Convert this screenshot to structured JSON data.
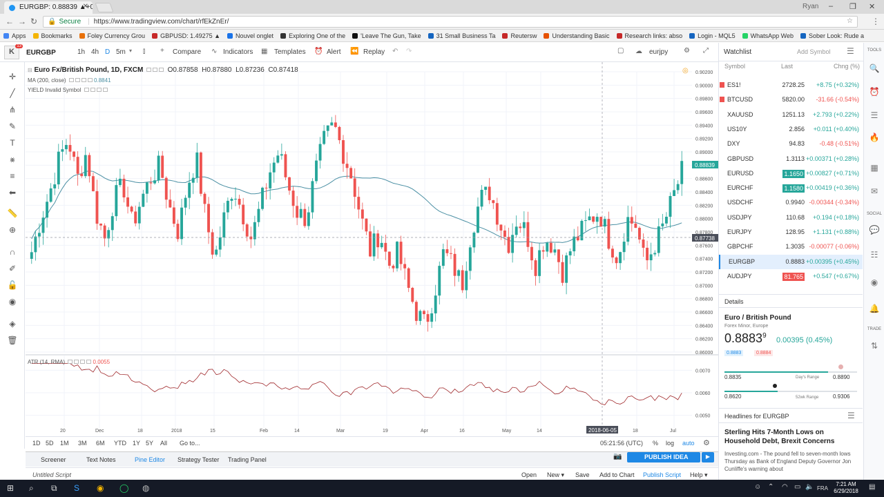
{
  "browser": {
    "tab_title": "EURGBP: 0.88839 ▲+0.45",
    "user": "Ryan",
    "secure_label": "Secure",
    "url": "https://www.tradingview.com/chart/rfEkZnEr/",
    "bookmarks": [
      "Apps",
      "Bookmarks",
      "Foley Currency Grou",
      "GBPUSD: 1.49275 ▲",
      "Nouvel onglet",
      "Exploring One of the",
      "'Leave The Gun, Take",
      "31 Small Business Ta",
      "Reutersw",
      "Understanding Basic",
      "Research links: abso",
      "Login - MQL5",
      "WhatsApp Web",
      "Sober Look: Rude a"
    ],
    "bookmark_colors": [
      "#4285f4",
      "#f4b400",
      "#e8710a",
      "#c62828",
      "#1a73e8",
      "#333333",
      "#111111",
      "#1565c0",
      "#c62828",
      "#e65100",
      "#c62828",
      "#1565c0",
      "#25d366",
      "#1565c0"
    ]
  },
  "toolbar": {
    "symbol": "EURGBP",
    "intervals": [
      "1h",
      "4h",
      "D",
      "5m"
    ],
    "active_interval": "D",
    "compare": "Compare",
    "indicators": "Indicators",
    "templates": "Templates",
    "alert": "Alert",
    "replay": "Replay",
    "layout_name": "eurjpy",
    "logo_badge": "13"
  },
  "legend": {
    "title": "Euro Fx/British Pound, 1D, FXCM",
    "open": "O0.87858",
    "high": "H0.87880",
    "low": "L0.87236",
    "close": "C0.87418",
    "ma_label": "MA (200, close)",
    "ma_value": "0.8841",
    "yield_label": "YIELD Invalid Symbol",
    "atr_label": "ATR (14, RMA)",
    "atr_value": "0.0055"
  },
  "chart_data": {
    "type": "candlestick",
    "symbol": "EURGBP",
    "price_axis": [
      "0.90200",
      "0.90000",
      "0.89800",
      "0.89600",
      "0.89400",
      "0.89200",
      "0.89000",
      "0.88800",
      "0.88600",
      "0.88400",
      "0.88200",
      "0.88000",
      "0.87800",
      "0.87600",
      "0.87400",
      "0.87200",
      "0.87000",
      "0.86800",
      "0.86600",
      "0.86400",
      "0.86200",
      "0.86000"
    ],
    "ylim": [
      0.86,
      0.902
    ],
    "last_price_label": "0.88839",
    "crosshair_price_label": "0.87738",
    "time_axis": [
      "20",
      "Dec",
      "18",
      "2018",
      "15",
      "Feb",
      "14",
      "Mar",
      "19",
      "Apr",
      "16",
      "May",
      "14",
      "18",
      "Jul"
    ],
    "crosshair_date": "2018-06-05",
    "atr_axis": [
      "0.0070",
      "0.0060",
      "0.0050"
    ],
    "atr_ylim": [
      0.0045,
      0.0075
    ],
    "ma_period": 200,
    "path_points": [
      0.875,
      0.88,
      0.884,
      0.889,
      0.892,
      0.886,
      0.89,
      0.881,
      0.877,
      0.883,
      0.885,
      0.879,
      0.883,
      0.886,
      0.888,
      0.882,
      0.878,
      0.885,
      0.889,
      0.88,
      0.874,
      0.88,
      0.885,
      0.881,
      0.877,
      0.882,
      0.887,
      0.89,
      0.885,
      0.881,
      0.88,
      0.887,
      0.892,
      0.894,
      0.89,
      0.886,
      0.88,
      0.875,
      0.878,
      0.873,
      0.875,
      0.87,
      0.866,
      0.864,
      0.869,
      0.875,
      0.873,
      0.87,
      0.878,
      0.883,
      0.884,
      0.88,
      0.876,
      0.88,
      0.878,
      0.873,
      0.877,
      0.876,
      0.872,
      0.876,
      0.878,
      0.88,
      0.881,
      0.877,
      0.874,
      0.88,
      0.879,
      0.873,
      0.876,
      0.879,
      0.883,
      0.887
    ]
  },
  "time_ranges": [
    "1D",
    "5D",
    "1M",
    "3M",
    "6M",
    "YTD",
    "1Y",
    "5Y",
    "All",
    "Go to..."
  ],
  "time_info": {
    "clock": "05:21:56 (UTC)",
    "pct": "%",
    "log": "log",
    "auto": "auto"
  },
  "panel": {
    "tabs": [
      "Screener",
      "Text Notes",
      "Pine Editor",
      "Strategy Tester",
      "Trading Panel"
    ],
    "active_tab": "Pine Editor",
    "publish": "PUBLISH IDEA",
    "script_name": "Untitled Script",
    "editor_actions": [
      "Open",
      "New ▾",
      "Save",
      "Add to Chart",
      "Publish Script",
      "Help ▾"
    ]
  },
  "watchlist": {
    "title": "Watchlist",
    "add_symbol": "Add Symbol",
    "cols": {
      "symbol": "Symbol",
      "last": "Last",
      "chg": "Chng (%)"
    },
    "rows": [
      {
        "symbol": "ES1!",
        "last": "2728.25",
        "chg": "+8.75 (+0.32%)",
        "dir": "up",
        "flag": "#ef5350"
      },
      {
        "symbol": "BTCUSD",
        "last": "5820.00",
        "chg": "-31.66 (-0.54%)",
        "dir": "dn",
        "flag": "#ef5350"
      },
      {
        "symbol": "XAUUSD",
        "last": "1251.13",
        "chg": "+2.793 (+0.22%)",
        "dir": "up",
        "flag": ""
      },
      {
        "symbol": "US10Y",
        "last": "2.856",
        "chg": "+0.011 (+0.40%)",
        "dir": "up",
        "flag": ""
      },
      {
        "symbol": "DXY",
        "last": "94.83",
        "chg": "-0.48 (-0.51%)",
        "dir": "dn",
        "flag": ""
      },
      {
        "symbol": "GBPUSD",
        "last": "1.3113",
        "chg": "+0.00371 (+0.28%)",
        "dir": "up",
        "flag": ""
      },
      {
        "symbol": "EURUSD",
        "last": "1.1650",
        "chg": "+0.00827 (+0.71%)",
        "dir": "up",
        "flag": "",
        "hl": "g"
      },
      {
        "symbol": "EURCHF",
        "last": "1.1580",
        "chg": "+0.00419 (+0.36%)",
        "dir": "up",
        "flag": "",
        "hl": "g"
      },
      {
        "symbol": "USDCHF",
        "last": "0.9940",
        "chg": "-0.00344 (-0.34%)",
        "dir": "dn",
        "flag": ""
      },
      {
        "symbol": "USDJPY",
        "last": "110.68",
        "chg": "+0.194 (+0.18%)",
        "dir": "up",
        "flag": ""
      },
      {
        "symbol": "EURJPY",
        "last": "128.95",
        "chg": "+1.131 (+0.88%)",
        "dir": "up",
        "flag": ""
      },
      {
        "symbol": "GBPCHF",
        "last": "1.3035",
        "chg": "-0.00077 (-0.06%)",
        "dir": "dn",
        "flag": ""
      },
      {
        "symbol": "EURGBP",
        "last": "0.8883",
        "chg": "+0.00395 (+0.45%)",
        "dir": "up",
        "flag": "",
        "selected": true
      },
      {
        "symbol": "AUDJPY",
        "last": "81.765",
        "chg": "+0.547 (+0.67%)",
        "dir": "up",
        "flag": "",
        "hl": "r"
      }
    ]
  },
  "details": {
    "header": "Details",
    "name": "Euro / British Pound",
    "category": "Forex Minor, Europe",
    "price": "0.8883",
    "price_sup": "9",
    "change": "0.00395 (0.45%)",
    "bid": "0.8883",
    "ask": "0.8884",
    "day_low": "0.8835",
    "day_high": "0.8890",
    "day_range_label": "Day's Range",
    "wk_low": "0.8620",
    "wk_high": "0.9306",
    "wk_range_label": "52wk Range",
    "day_position": 0.78,
    "wk_position": 0.4
  },
  "headlines": {
    "header": "Headlines for EURGBP",
    "title": "Sterling Hits 7-Month Lows on Household Debt, Brexit Concerns",
    "source": "Investing.com",
    "snippet": " - The pound fell to seven-month lows Thursday as Bank of England Deputy Governor Jon Cunliffe's warning about"
  },
  "right_icons": [
    "TOOLS",
    "SOCIAL",
    "TRADE"
  ],
  "taskbar": {
    "time": "7:21 AM",
    "date": "6/29/2018"
  }
}
